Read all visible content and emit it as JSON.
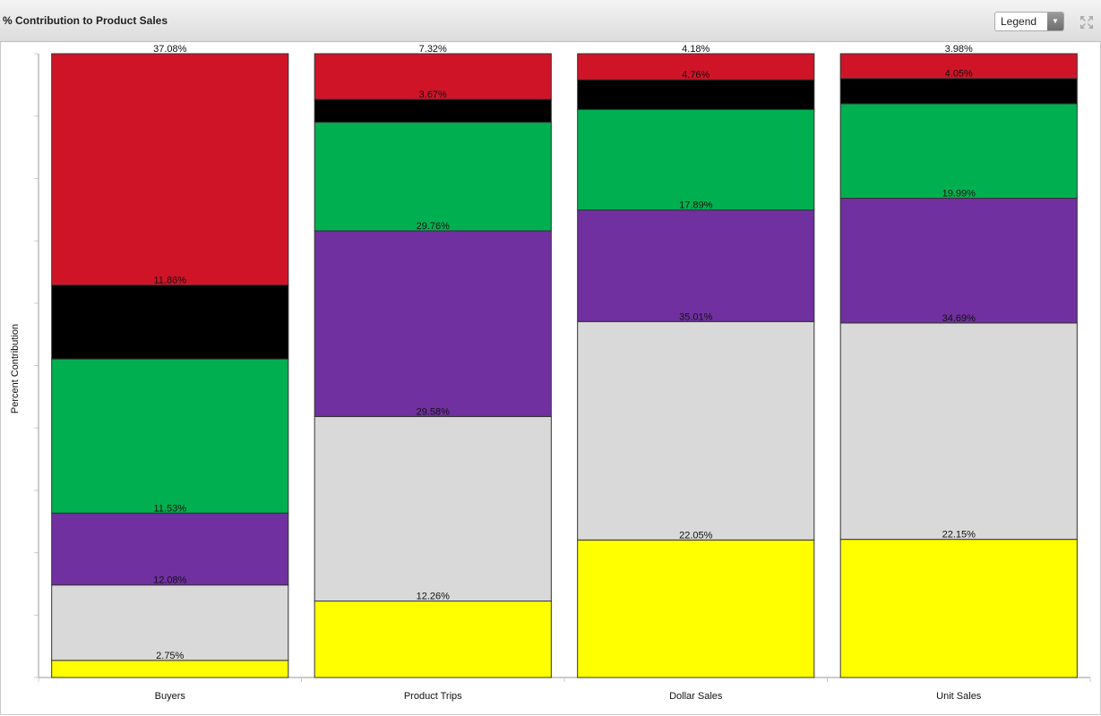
{
  "header": {
    "legend_button": "Legend"
  },
  "chart_data": {
    "type": "bar",
    "stacked": true,
    "title": "% Contribution to Product Sales",
    "y_label": "Percent Contribution",
    "categories": [
      "Buyers",
      "Product Trips",
      "Dollar Sales",
      "Unit Sales"
    ],
    "ylim": [
      0,
      100
    ],
    "yticks": [
      0,
      10,
      20,
      30,
      40,
      50,
      60,
      70,
      80,
      90,
      100
    ],
    "series": [
      {
        "color": "#ffff00",
        "values": [
          2.75,
          12.26,
          22.05,
          22.15
        ],
        "value_labels": [
          "2.75%",
          "12.26%",
          "22.05%",
          "22.15%"
        ]
      },
      {
        "color": "#d9d9d9",
        "values": [
          12.08,
          29.58,
          35.01,
          34.69
        ],
        "value_labels": [
          "12.08%",
          "29.58%",
          "35.01%",
          "34.69%"
        ]
      },
      {
        "color": "#7030a0",
        "values": [
          11.53,
          29.76,
          17.89,
          19.99
        ],
        "value_labels": [
          "11.53%",
          "29.76%",
          "17.89%",
          "19.99%"
        ]
      },
      {
        "color": "#00b050",
        "values": [
          24.7,
          17.41,
          16.11,
          15.14
        ],
        "value_labels": [
          null,
          null,
          null,
          null
        ]
      },
      {
        "color": "#000000",
        "values": [
          11.86,
          3.67,
          4.76,
          4.05
        ],
        "value_labels": [
          "11.86%",
          "3.67%",
          "4.76%",
          "4.05%"
        ]
      },
      {
        "color": "#d01427",
        "values": [
          37.08,
          7.32,
          4.18,
          3.98
        ],
        "value_labels": [
          "37.08%",
          "7.32%",
          "4.18%",
          "3.98%"
        ]
      }
    ]
  }
}
